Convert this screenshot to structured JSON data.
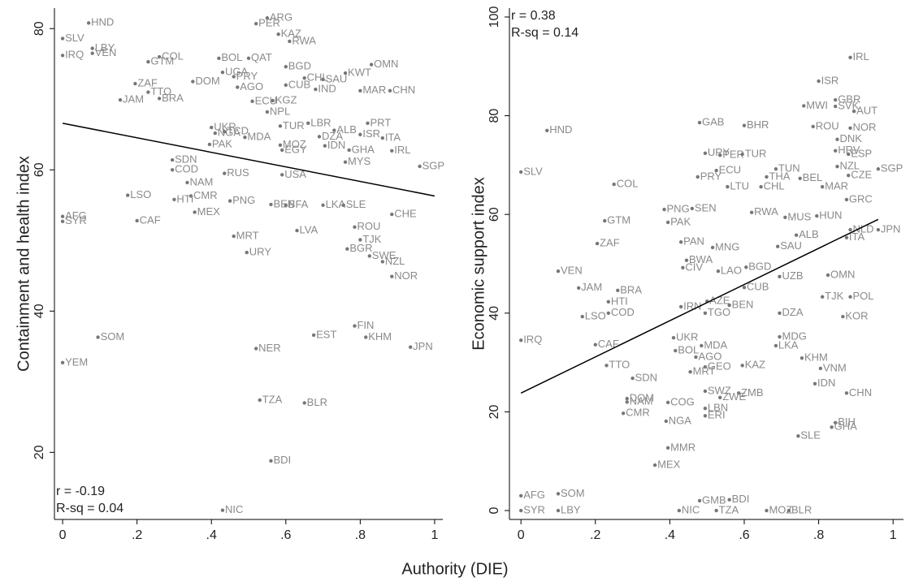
{
  "x_label": "Authority (DIE)",
  "chart_data": [
    {
      "type": "scatter",
      "y_label": "Containment and health index",
      "annotations": [
        "r = -0.19",
        "R-sq = 0.04"
      ],
      "xlim": [
        -0.022,
        1.022
      ],
      "ylim": [
        10.5,
        82.9
      ],
      "xticks": [
        0,
        {
          "value": 0.2,
          "label": ".2"
        },
        {
          "value": 0.4,
          "label": ".4"
        },
        {
          "value": 0.6,
          "label": ".6"
        },
        {
          "value": 0.8,
          "label": ".8"
        },
        1
      ],
      "yticks": [
        20,
        40,
        60,
        80
      ],
      "color": "#777777",
      "fit_line": {
        "x": [
          0,
          1
        ],
        "y": [
          66.6,
          56.3
        ]
      },
      "point_labels": [
        "HND",
        "SLV",
        "IRQ",
        "LBY",
        "VEN",
        "COL",
        "GTM",
        "ZAF",
        "TTO",
        "JAM",
        "BRA",
        "DOM",
        "UGA",
        "PRY",
        "ARG",
        "PER",
        "KAZ",
        "RWA",
        "QAT",
        "BOL",
        "BGD",
        "OMN",
        "KWT",
        "CHL",
        "SAU",
        "CUB",
        "IND",
        "MAR",
        "CHN",
        "AGO",
        "ECU",
        "KGZ",
        "NPL",
        "TUR",
        "LBR",
        "PRT",
        "ALB",
        "ISR",
        "ITA",
        "DZA",
        "UKR",
        "NGA",
        "TCD",
        "MDA",
        "MOZ",
        "IDN",
        "PAK",
        "EGY",
        "GHA",
        "IRL",
        "SDN",
        "COD",
        "SGP",
        "MYS",
        "USA",
        "RUS",
        "NAM",
        "LSO",
        "CMR",
        "HTI",
        "MEX",
        "PNG",
        "BEN",
        "BFA",
        "LKA",
        "SLE",
        "CHE",
        "AFG",
        "SYR",
        "CAF",
        "ROU",
        "LVA",
        "TJK",
        "MRT",
        "BGR",
        "URY",
        "SWE",
        "NZL",
        "NOR",
        "FIN",
        "EST",
        "KHM",
        "SOM",
        "NER",
        "JPN",
        "YEM",
        "TZA",
        "BLR",
        "BDI",
        "NIC"
      ],
      "x": [
        0.07,
        0,
        0,
        0.08,
        0.08,
        0.26,
        0.23,
        0.195,
        0.23,
        0.155,
        0.26,
        0.35,
        0.43,
        0.46,
        0.55,
        0.52,
        0.58,
        0.61,
        0.5,
        0.42,
        0.6,
        0.83,
        0.76,
        0.65,
        0.7,
        0.6,
        0.68,
        0.8,
        0.88,
        0.47,
        0.51,
        0.565,
        0.55,
        0.585,
        0.66,
        0.82,
        0.73,
        0.8,
        0.86,
        0.69,
        0.4,
        0.41,
        0.435,
        0.49,
        0.585,
        0.705,
        0.395,
        0.59,
        0.77,
        0.885,
        0.295,
        0.295,
        0.96,
        0.76,
        0.59,
        0.435,
        0.335,
        0.175,
        0.345,
        0.3,
        0.355,
        0.45,
        0.56,
        0.6,
        0.7,
        0.755,
        0.885,
        0,
        0,
        0.2,
        0.785,
        0.63,
        0.8,
        0.46,
        0.765,
        0.495,
        0.825,
        0.86,
        0.885,
        0.785,
        0.675,
        0.815,
        0.095,
        0.52,
        0.935,
        0,
        0.53,
        0.65,
        0.56,
        0.43
      ],
      "values": [
        80.8,
        78.6,
        76.2,
        77.2,
        76.5,
        76,
        75.3,
        72.2,
        71,
        69.9,
        70.1,
        72.5,
        73.8,
        73.2,
        81.5,
        80.7,
        79.2,
        78.2,
        75.8,
        75.8,
        74.6,
        74.9,
        73.7,
        73,
        72.8,
        72,
        71.4,
        71.2,
        71.2,
        71.7,
        69.7,
        69.8,
        68.2,
        66.2,
        66.6,
        66.6,
        65.6,
        65,
        64.5,
        64.7,
        66,
        65.2,
        65.4,
        64.6,
        63.5,
        63.4,
        63.6,
        62.8,
        62.8,
        62.7,
        61.4,
        60,
        60.5,
        61.1,
        59.3,
        59.5,
        58.2,
        56.4,
        56.3,
        55.8,
        54,
        55.6,
        55.1,
        55,
        55,
        55,
        53.7,
        53.4,
        52.7,
        52.8,
        51.9,
        51.4,
        50.1,
        50.6,
        48.8,
        48.3,
        47.8,
        47,
        44.9,
        37.9,
        36.6,
        36.3,
        36.3,
        34.7,
        34.9,
        32.7,
        27.4,
        27,
        18.8,
        11.8
      ]
    },
    {
      "type": "scatter",
      "y_label": "Economic support index",
      "annotations": [
        "r = 0.38",
        "R-sq = 0.14"
      ],
      "xlim": [
        -0.031,
        1.028
      ],
      "ylim": [
        -1.8,
        101.8
      ],
      "xticks": [
        0,
        {
          "value": 0.2,
          "label": ".2"
        },
        {
          "value": 0.4,
          "label": ".4"
        },
        {
          "value": 0.6,
          "label": ".6"
        },
        {
          "value": 0.8,
          "label": ".8"
        },
        1
      ],
      "yticks": [
        0,
        20,
        40,
        60,
        80,
        100
      ],
      "color": "#777777",
      "fit_line": {
        "x": [
          0,
          0.96
        ],
        "y": [
          23.8,
          59
        ]
      },
      "point_labels": [
        "IRL",
        "ISR",
        "GBR",
        "MWI",
        "SVK",
        "AUT",
        "GAB",
        "BHR",
        "ROU",
        "NOR",
        "HND",
        "DNK",
        "HRV",
        "ESP",
        "URY",
        "PER",
        "TUR",
        "TUN",
        "NZL",
        "SGP",
        "ECU",
        "SLV",
        "PRY",
        "THA",
        "BEL",
        "CZE",
        "COL",
        "LTU",
        "CHL",
        "MAR",
        "PNG",
        "SEN",
        "RWA",
        "GRC",
        "MUS",
        "HUN",
        "GTM",
        "PAK",
        "ZAF",
        "PAN",
        "MNG",
        "SAU",
        "NLD",
        "JPN",
        "ITA",
        "ALB",
        "VEN",
        "BWA",
        "CIV",
        "LAO",
        "BGD",
        "UZB",
        "OMN",
        "JAM",
        "BRA",
        "CUB",
        "POL",
        "TJK",
        "HTI",
        "COD",
        "IRN",
        "AZE",
        "BEN",
        "TGO",
        "LSO",
        "DZA",
        "KOR",
        "IRQ",
        "UKR",
        "CAF",
        "MDG",
        "LKA",
        "MDA",
        "BOL",
        "AGO",
        "KHM",
        "TTO",
        "GEO",
        "KAZ",
        "MRT",
        "VNM",
        "SDN",
        "IDN",
        "CHN",
        "SWZ",
        "ZMB",
        "ZWE",
        "DOM",
        "NAM",
        "COG",
        "LBN",
        "ERI",
        "CMR",
        "NGA",
        "BIH",
        "GHA",
        "SLE",
        "MMR",
        "MEX",
        "AFG",
        "SOM",
        "GMB",
        "BDI",
        "SYR",
        "LBY",
        "NIC",
        "TZA",
        "MOZ",
        "BLR"
      ],
      "x": [
        0.885,
        0.8,
        0.845,
        0.76,
        0.845,
        0.895,
        0.48,
        0.6,
        0.785,
        0.885,
        0.07,
        0.85,
        0.845,
        0.88,
        0.495,
        0.535,
        0.595,
        0.685,
        0.85,
        0.96,
        0.525,
        0,
        0.475,
        0.66,
        0.75,
        0.88,
        0.25,
        0.555,
        0.645,
        0.81,
        0.385,
        0.46,
        0.62,
        0.875,
        0.71,
        0.795,
        0.225,
        0.395,
        0.205,
        0.43,
        0.515,
        0.69,
        0.885,
        0.96,
        0.875,
        0.74,
        0.1,
        0.445,
        0.435,
        0.53,
        0.605,
        0.695,
        0.825,
        0.155,
        0.26,
        0.6,
        0.885,
        0.81,
        0.235,
        0.235,
        0.43,
        0.5,
        0.56,
        0.495,
        0.165,
        0.695,
        0.865,
        0,
        0.41,
        0.2,
        0.695,
        0.685,
        0.485,
        0.415,
        0.47,
        0.755,
        0.23,
        0.495,
        0.595,
        0.455,
        0.805,
        0.3,
        0.79,
        0.875,
        0.495,
        0.585,
        0.535,
        0.285,
        0.285,
        0.395,
        0.495,
        0.495,
        0.275,
        0.39,
        0.845,
        0.835,
        0.745,
        0.395,
        0.36,
        0,
        0.1,
        0.48,
        0.56,
        0,
        0.1,
        0.425,
        0.525,
        0.66,
        0.72
      ],
      "values": [
        91.8,
        87,
        83.2,
        82,
        81.9,
        80.9,
        78.6,
        78,
        77.8,
        77.5,
        77,
        75.2,
        72.9,
        72.2,
        72.4,
        72,
        72.2,
        69.2,
        69.7,
        69.2,
        68.9,
        68.6,
        67.6,
        67.6,
        67.3,
        67.9,
        66.1,
        65.6,
        65.6,
        65.6,
        61,
        61.2,
        60.4,
        63,
        59.4,
        59.7,
        58.7,
        58.4,
        54.1,
        54.4,
        53.3,
        53.5,
        56.9,
        56.9,
        55.3,
        55.8,
        48.5,
        50.7,
        49.2,
        48.5,
        49.3,
        47.4,
        47.7,
        45.1,
        44.6,
        45.2,
        43.3,
        43.3,
        42.3,
        40,
        41.3,
        42.4,
        41.6,
        40,
        39.3,
        40,
        39.3,
        34.5,
        35,
        33.6,
        35.2,
        33.4,
        33.4,
        32.4,
        31.1,
        30.9,
        29.4,
        29.1,
        29.4,
        28.1,
        28.8,
        26.8,
        25.7,
        23.8,
        24.2,
        23.8,
        22.9,
        22.7,
        22,
        21.9,
        20.7,
        19.2,
        19.7,
        18.1,
        17.8,
        16.9,
        15.1,
        12.7,
        9.2,
        3,
        3.4,
        2,
        2.2,
        0,
        0,
        0,
        0,
        0,
        0
      ]
    }
  ]
}
